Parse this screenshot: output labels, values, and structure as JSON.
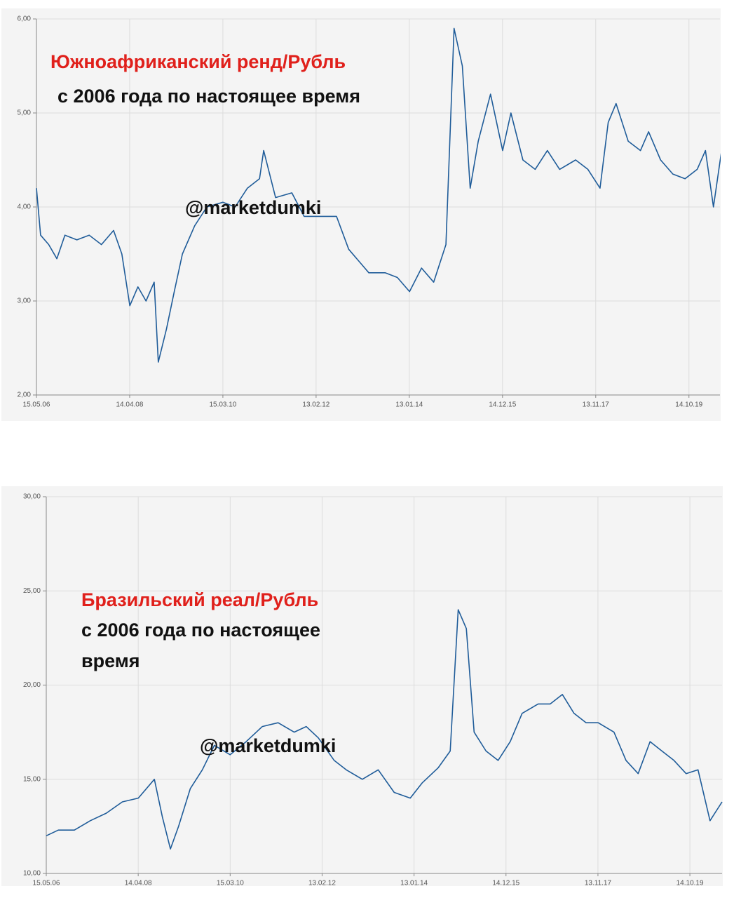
{
  "chart_data": [
    {
      "type": "line",
      "title": "Южноафриканский ренд/Рубль",
      "subtitle": "с 2006 года по настоящее время",
      "annotation": "@marketdumki",
      "color": "#1f5c99",
      "grid": true,
      "xlim": [
        "15.05.06",
        "03.06.20"
      ],
      "xticks": [
        "15.05.06",
        "14.04.08",
        "15.03.10",
        "13.02.12",
        "13.01.14",
        "14.12.15",
        "13.11.17",
        "14.10.19"
      ],
      "ylim": [
        2,
        6
      ],
      "yticks": [
        {
          "value": 2,
          "label": "2,00"
        },
        {
          "value": 3,
          "label": "3,00"
        },
        {
          "value": 4,
          "label": "4,00"
        },
        {
          "value": 5,
          "label": "5,00"
        },
        {
          "value": 6,
          "label": "6,00"
        }
      ],
      "x": [
        "15.05.06",
        "15.06.06",
        "15.08.06",
        "15.10.06",
        "15.12.06",
        "15.03.07",
        "15.06.07",
        "15.09.07",
        "15.12.07",
        "15.02.08",
        "15.04.08",
        "15.06.08",
        "15.08.08",
        "15.10.08",
        "15.11.08",
        "15.01.09",
        "15.03.09",
        "15.05.09",
        "15.08.09",
        "15.11.09",
        "15.03.10",
        "15.06.10",
        "15.09.10",
        "15.12.10",
        "15.01.11",
        "15.04.11",
        "15.08.11",
        "15.11.11",
        "15.03.12",
        "15.07.12",
        "15.10.12",
        "15.03.13",
        "15.07.13",
        "15.10.13",
        "15.01.14",
        "15.04.14",
        "15.07.14",
        "15.10.14",
        "15.12.14",
        "15.02.15",
        "15.04.15",
        "15.06.15",
        "15.09.15",
        "15.12.15",
        "15.02.16",
        "15.05.16",
        "15.08.16",
        "15.11.16",
        "15.02.17",
        "15.06.17",
        "15.09.17",
        "15.12.17",
        "15.02.18",
        "15.04.18",
        "15.07.18",
        "15.10.18",
        "15.12.18",
        "15.03.19",
        "15.06.19",
        "15.09.19",
        "15.12.19",
        "15.02.20",
        "15.04.20",
        "15.06.20"
      ],
      "values": [
        4.2,
        3.7,
        3.6,
        3.45,
        3.7,
        3.65,
        3.7,
        3.6,
        3.75,
        3.5,
        2.95,
        3.15,
        3.0,
        3.2,
        2.35,
        2.7,
        3.1,
        3.5,
        3.8,
        4.0,
        4.05,
        4.0,
        4.2,
        4.3,
        4.6,
        4.1,
        4.15,
        3.9,
        3.9,
        3.9,
        3.55,
        3.3,
        3.3,
        3.25,
        3.1,
        3.35,
        3.2,
        3.6,
        5.9,
        5.5,
        4.2,
        4.7,
        5.2,
        4.6,
        5.0,
        4.5,
        4.4,
        4.6,
        4.4,
        4.5,
        4.4,
        4.2,
        4.9,
        5.1,
        4.7,
        4.6,
        4.8,
        4.5,
        4.35,
        4.3,
        4.4,
        4.6,
        4.0,
        4.6
      ]
    },
    {
      "type": "line",
      "title": "Бразильский реал/Рубль",
      "subtitle": "с 2006 года по настоящее время",
      "annotation": "@marketdumki",
      "color": "#1f5c99",
      "grid": true,
      "xlim": [
        "15.05.06",
        "15.06.20"
      ],
      "xticks": [
        "15.05.06",
        "14.04.08",
        "15.03.10",
        "13.02.12",
        "13.01.14",
        "14.12.15",
        "13.11.17",
        "14.10.19"
      ],
      "ylim": [
        10,
        30
      ],
      "yticks": [
        {
          "value": 10,
          "label": "10,00"
        },
        {
          "value": 15,
          "label": "15,00"
        },
        {
          "value": 20,
          "label": "20,00"
        },
        {
          "value": 25,
          "label": "25,00"
        },
        {
          "value": 30,
          "label": "30,00"
        }
      ],
      "x": [
        "15.05.06",
        "15.08.06",
        "15.12.06",
        "15.04.07",
        "15.08.07",
        "15.12.07",
        "15.04.08",
        "15.08.08",
        "15.10.08",
        "15.12.08",
        "15.02.09",
        "15.05.09",
        "15.08.09",
        "15.11.09",
        "15.03.10",
        "15.07.10",
        "15.11.10",
        "15.03.11",
        "15.07.11",
        "15.10.11",
        "15.01.12",
        "15.05.12",
        "15.08.12",
        "15.12.12",
        "15.04.13",
        "15.08.13",
        "15.12.13",
        "15.03.14",
        "15.07.14",
        "15.10.14",
        "15.12.14",
        "15.02.15",
        "15.04.15",
        "15.07.15",
        "15.10.15",
        "15.01.16",
        "15.04.16",
        "15.08.16",
        "15.11.16",
        "15.02.17",
        "15.05.17",
        "15.08.17",
        "15.11.17",
        "15.03.18",
        "15.06.18",
        "15.09.18",
        "15.12.18",
        "15.03.19",
        "15.06.19",
        "15.09.19",
        "15.12.19",
        "15.03.20",
        "15.06.20"
      ],
      "values": [
        12.0,
        12.3,
        12.3,
        12.8,
        13.2,
        13.8,
        14.0,
        15.0,
        13.0,
        11.3,
        12.5,
        14.5,
        15.5,
        16.8,
        16.3,
        17.0,
        17.8,
        18.0,
        17.5,
        17.8,
        17.2,
        16.0,
        15.5,
        15.0,
        15.5,
        14.3,
        14.0,
        14.8,
        15.6,
        16.5,
        24.0,
        23.0,
        17.5,
        16.5,
        16.0,
        17.0,
        18.5,
        19.0,
        19.0,
        19.5,
        18.5,
        18.0,
        18.0,
        17.5,
        16.0,
        15.3,
        17.0,
        16.5,
        16.0,
        15.3,
        15.5,
        12.8,
        13.8
      ]
    }
  ]
}
